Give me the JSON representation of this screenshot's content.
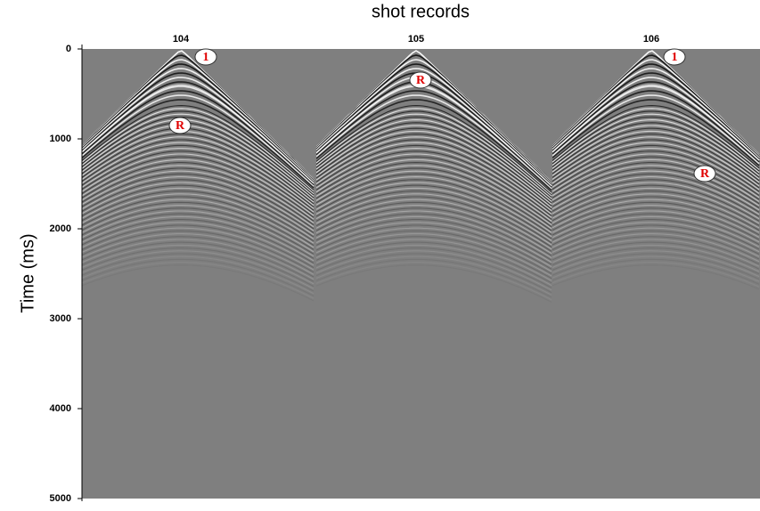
{
  "title": "shot records",
  "y_axis": {
    "label": "Time (ms)",
    "lim": [
      0,
      5000
    ],
    "ticks": [
      0,
      1000,
      2000,
      3000,
      4000,
      5000
    ]
  },
  "shots": [
    "104",
    "105",
    "106"
  ],
  "annotations": [
    "1",
    "R",
    "R",
    "1",
    "R"
  ]
}
